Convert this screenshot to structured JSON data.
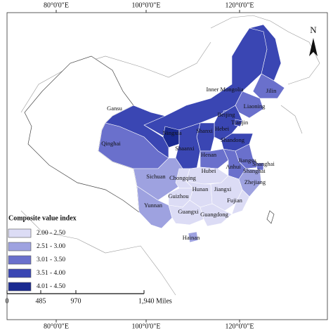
{
  "map": {
    "longitude_labels_top": [
      "80°0'0\"E",
      "100°0'0\"E",
      "120°0'0\"E"
    ],
    "longitude_labels_bottom": [
      "80°0'0\"E",
      "100°0'0\"E",
      "120°0'0\"E"
    ],
    "north_arrow": "N",
    "provinces": [
      {
        "name": "Inner Mongolia",
        "color": "#3a46b3"
      },
      {
        "name": "Jilin",
        "color": "#6a70cc"
      },
      {
        "name": "Liaoning",
        "color": "#6a70cc"
      },
      {
        "name": "Beijing",
        "color": "#3a46b3"
      },
      {
        "name": "Hebei",
        "color": "#3a46b3"
      },
      {
        "name": "Tianjin",
        "color": "#3a46b3"
      },
      {
        "name": "Gansu",
        "color": "#3a46b3"
      },
      {
        "name": "Ningxia",
        "color": "#1a2a91"
      },
      {
        "name": "Shanxi",
        "color": "#3a46b3"
      },
      {
        "name": "Shandong",
        "color": "#3a46b3"
      },
      {
        "name": "Shaanxi",
        "color": "#3a46b3"
      },
      {
        "name": "Qinghai",
        "color": "#6a70cc"
      },
      {
        "name": "Henan",
        "color": "#6a70cc"
      },
      {
        "name": "Jiangsu",
        "color": "#6a70cc"
      },
      {
        "name": "Anhui",
        "color": "#6a70cc"
      },
      {
        "name": "Shanghai",
        "color": "#6a70cc"
      },
      {
        "name": "Shanghai"
      },
      {
        "name": "Hubei",
        "color": "#dcdcf5"
      },
      {
        "name": "Sichuan",
        "color": "#9ea2e0"
      },
      {
        "name": "Chongqing",
        "color": "#dcdcf5"
      },
      {
        "name": "Zhejiang",
        "color": "#9ea2e0"
      },
      {
        "name": "Hunan",
        "color": "#dcdcf5"
      },
      {
        "name": "Jiangxi",
        "color": "#dcdcf5"
      },
      {
        "name": "Guizhou",
        "color": "#dcdcf5"
      },
      {
        "name": "Yunnan",
        "color": "#9ea2e0"
      },
      {
        "name": "Fujian",
        "color": "#dcdcf5"
      },
      {
        "name": "Guangxi",
        "color": "#dcdcf5"
      },
      {
        "name": "Guangdong",
        "color": "#dcdcf5"
      },
      {
        "name": "Hainan",
        "color": "#9ea2e0"
      }
    ],
    "unlabeled_regions": [
      {
        "color": "#3a46b3"
      }
    ],
    "legend": {
      "title": "Composite value index",
      "items": [
        {
          "label": "2.00 - 2.50",
          "color": "#dcdcf5"
        },
        {
          "label": "2.51 - 3.00",
          "color": "#9ea2e0"
        },
        {
          "label": "3.01 - 3.50",
          "color": "#6a70cc"
        },
        {
          "label": "3.51 - 4.00",
          "color": "#3a46b3"
        },
        {
          "label": "4.01 - 4.50",
          "color": "#1a2a91"
        }
      ]
    },
    "scale_bar": {
      "labels": [
        "0",
        "485",
        "970",
        "1,940 Miles"
      ]
    }
  }
}
